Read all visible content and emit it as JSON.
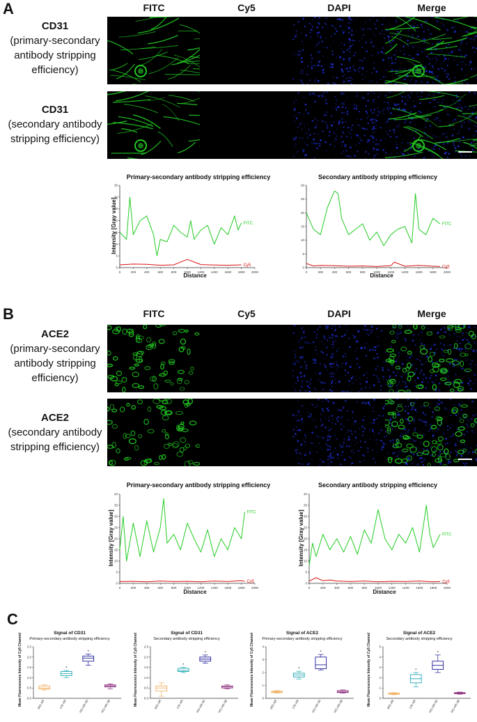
{
  "panels": {
    "A": {
      "letter": "A",
      "col_headers": [
        "FITC",
        "Cy5",
        "DAPI",
        "Merge"
      ],
      "rows": [
        {
          "title": "CD31",
          "sub": [
            "(primary-secondary",
            "antibody stripping",
            "efficiency)"
          ]
        },
        {
          "title": "CD31",
          "sub": [
            "(secondary antibody",
            "stripping efficiency)"
          ]
        }
      ]
    },
    "B": {
      "letter": "B",
      "col_headers": [
        "FITC",
        "Cy5",
        "DAPI",
        "Merge"
      ],
      "rows": [
        {
          "title": "ACE2",
          "sub": [
            "(primary-secondary",
            "antibody stripping",
            "efficiency)"
          ]
        },
        {
          "title": "ACE2",
          "sub": [
            "(secondary antibody",
            "stripping efficiency)"
          ]
        }
      ]
    },
    "C": {
      "letter": "C"
    }
  },
  "colors": {
    "fitc": "#22cc22",
    "cy5": "#dd1111",
    "dapi": "#2233ee",
    "tile_bg": "#000000",
    "mo": "#f0b060",
    "cr": "#20a8b0",
    "ho50": "#1c1c9a",
    "ho98": "#8a2a7a"
  },
  "chart_data": [
    {
      "type": "line",
      "title": "Primary-secondary antibody stripping efficiency",
      "xlabel": "Distance",
      "ylabel": "Intensity [Gray value]",
      "xlim": [
        0,
        2000
      ],
      "ylim": [
        0,
        35
      ],
      "xticks": [
        "0",
        "200",
        "400",
        "600",
        "800",
        "1000",
        "1200",
        "1400",
        "1600",
        "1800",
        "2000"
      ],
      "yticks": [
        "0",
        "5",
        "10",
        "15",
        "20",
        "25",
        "30",
        "35"
      ],
      "series": [
        {
          "name": "FITC",
          "color": "#22cc22",
          "x": [
            0,
            100,
            150,
            200,
            300,
            400,
            500,
            550,
            600,
            700,
            800,
            900,
            1000,
            1050,
            1100,
            1200,
            1300,
            1400,
            1500,
            1600,
            1700,
            1750,
            1800
          ],
          "y": [
            15,
            12,
            30,
            14,
            20,
            22,
            14,
            5,
            12,
            11,
            18,
            15,
            13,
            20,
            12,
            16,
            18,
            10,
            17,
            14,
            22,
            16,
            19
          ]
        },
        {
          "name": "Cy5",
          "color": "#dd1111",
          "x": [
            0,
            200,
            400,
            600,
            800,
            1000,
            1200,
            1400,
            1600,
            1800
          ],
          "y": [
            1.2,
            1.5,
            1.4,
            1.0,
            1.2,
            3.5,
            1.3,
            1.1,
            1.0,
            1.2
          ]
        }
      ]
    },
    {
      "type": "line",
      "title": "Secondary antibody stripping efficiency",
      "xlabel": "Distance",
      "ylabel": "",
      "xlim": [
        0,
        2000
      ],
      "ylim": [
        0,
        30
      ],
      "xticks": [
        "0",
        "200",
        "400",
        "600",
        "800",
        "1000",
        "1200",
        "1400",
        "1600",
        "1800",
        "2000"
      ],
      "yticks": [
        "0",
        "5",
        "10",
        "15",
        "20",
        "25",
        "30"
      ],
      "series": [
        {
          "name": "FITC",
          "color": "#22cc22",
          "x": [
            0,
            100,
            200,
            300,
            350,
            400,
            450,
            500,
            600,
            700,
            800,
            900,
            1000,
            1100,
            1200,
            1300,
            1400,
            1500,
            1550,
            1600,
            1700,
            1800,
            1900
          ],
          "y": [
            20,
            14,
            12,
            22,
            25,
            28,
            27,
            18,
            12,
            14,
            16,
            10,
            13,
            8,
            12,
            14,
            15,
            9,
            27,
            14,
            12,
            18,
            16
          ]
        },
        {
          "name": "Cy5",
          "color": "#dd1111",
          "x": [
            0,
            100,
            200,
            400,
            600,
            800,
            1000,
            1200,
            1250,
            1400,
            1600,
            1800,
            1900
          ],
          "y": [
            1.5,
            0.6,
            0.8,
            0.7,
            0.5,
            0.6,
            0.4,
            0.7,
            2.0,
            0.5,
            0.8,
            0.5,
            0.4
          ]
        }
      ]
    },
    {
      "type": "line",
      "title": "Primary-secondary antibody stripping efficiency",
      "xlabel": "Distance",
      "ylabel": "Intensity [Gray value]",
      "xlim": [
        0,
        2000
      ],
      "ylim": [
        0,
        40
      ],
      "xticks": [
        "0",
        "200",
        "400",
        "600",
        "800",
        "1000",
        "1200",
        "1400",
        "1600",
        "1800",
        "2000"
      ],
      "yticks": [
        "0",
        "5",
        "10",
        "15",
        "20",
        "25",
        "30",
        "35",
        "40"
      ],
      "series": [
        {
          "name": "FITC",
          "color": "#22cc22",
          "x": [
            0,
            50,
            100,
            200,
            300,
            400,
            500,
            600,
            650,
            700,
            800,
            900,
            1000,
            1100,
            1200,
            1300,
            1400,
            1500,
            1600,
            1700,
            1800,
            1850
          ],
          "y": [
            15,
            30,
            10,
            27,
            12,
            28,
            14,
            25,
            38,
            18,
            22,
            15,
            27,
            20,
            14,
            24,
            12,
            20,
            15,
            25,
            20,
            32
          ]
        },
        {
          "name": "Cy5",
          "color": "#dd1111",
          "x": [
            0,
            200,
            400,
            600,
            800,
            1000,
            1200,
            1400,
            1600,
            1800,
            1850
          ],
          "y": [
            0.8,
            0.9,
            0.7,
            1.0,
            0.8,
            0.9,
            0.7,
            1.0,
            0.8,
            1.2,
            0.9
          ]
        }
      ]
    },
    {
      "type": "line",
      "title": "Secondary antibody stripping efficiency",
      "xlabel": "Distance",
      "ylabel": "Intensity [Gray value]",
      "xlim": [
        0,
        2000
      ],
      "ylim": [
        0,
        40
      ],
      "xticks": [
        "0",
        "200",
        "400",
        "600",
        "800",
        "1000",
        "1200",
        "1400",
        "1600",
        "1800",
        "2000"
      ],
      "yticks": [
        "0",
        "5",
        "10",
        "15",
        "20",
        "25",
        "30",
        "35",
        "40"
      ],
      "series": [
        {
          "name": "FITC",
          "color": "#22cc22",
          "x": [
            0,
            50,
            100,
            200,
            300,
            400,
            500,
            600,
            700,
            800,
            900,
            1000,
            1100,
            1200,
            1300,
            1400,
            1500,
            1600,
            1700,
            1750,
            1800,
            1900
          ],
          "y": [
            8,
            18,
            12,
            22,
            15,
            20,
            14,
            21,
            13,
            24,
            18,
            33,
            20,
            15,
            22,
            18,
            25,
            14,
            35,
            22,
            16,
            22
          ]
        },
        {
          "name": "Cy5",
          "color": "#dd1111",
          "x": [
            0,
            100,
            200,
            300,
            400,
            600,
            800,
            1000,
            1200,
            1400,
            1600,
            1800,
            1900
          ],
          "y": [
            1.0,
            2.5,
            1.2,
            1.5,
            1.0,
            0.8,
            1.0,
            0.7,
            0.9,
            0.8,
            1.0,
            0.7,
            0.8
          ]
        }
      ]
    },
    {
      "type": "box",
      "title": "Signal of CD31",
      "subtitle": "Primary-secondary antibody stripping efficiency",
      "ylabel": "Mean Fluorescence Intensity of Cy5 Channel",
      "ylim": [
        0,
        2.5
      ],
      "yticks": [
        "0.0",
        "0.5",
        "1.0",
        "1.5",
        "2.0",
        "2.5"
      ],
      "categories": [
        "MO-AR",
        "CR-AR",
        "HO-AR-50",
        "HO-AR-98"
      ],
      "boxes": [
        {
          "min": 0.4,
          "q1": 0.45,
          "median": 0.5,
          "q3": 0.6,
          "max": 0.65,
          "star": false
        },
        {
          "min": 1.0,
          "q1": 1.1,
          "median": 1.2,
          "q3": 1.3,
          "max": 1.35,
          "star": true
        },
        {
          "min": 1.6,
          "q1": 1.8,
          "median": 1.95,
          "q3": 2.05,
          "max": 2.15,
          "star": true
        },
        {
          "min": 0.45,
          "q1": 0.55,
          "median": 0.6,
          "q3": 0.65,
          "max": 0.7,
          "star": false
        }
      ]
    },
    {
      "type": "box",
      "title": "Signal of CD31",
      "subtitle": "Secondary antibody stripping efficiency",
      "ylabel": "Mean Fluorescence Intensity of Cy5 Channel",
      "ylim": [
        0,
        2.5
      ],
      "yticks": [
        "0.0",
        "0.5",
        "1.0",
        "1.5",
        "2.0",
        "2.5"
      ],
      "categories": [
        "MO-AR",
        "CR-AR",
        "HO-AR-50",
        "HO-AR-98"
      ],
      "boxes": [
        {
          "min": 0.1,
          "q1": 0.35,
          "median": 0.5,
          "q3": 0.6,
          "max": 0.75,
          "star": false
        },
        {
          "min": 1.25,
          "q1": 1.3,
          "median": 1.35,
          "q3": 1.45,
          "max": 1.5,
          "star": true
        },
        {
          "min": 1.7,
          "q1": 1.8,
          "median": 1.9,
          "q3": 2.0,
          "max": 2.1,
          "star": true
        },
        {
          "min": 0.45,
          "q1": 0.5,
          "median": 0.55,
          "q3": 0.6,
          "max": 0.65,
          "star": false
        }
      ]
    },
    {
      "type": "box",
      "title": "Signal of ACE2",
      "subtitle": "Primary-secondary antibody stripping efficiency",
      "ylabel": "Mean Fluorescence Intensity of Cy5 Channel",
      "ylim": [
        0,
        4
      ],
      "yticks": [
        "0",
        "1",
        "2",
        "3",
        "4"
      ],
      "categories": [
        "MO-AR",
        "CR-AR",
        "HO-AR-50",
        "HO-AR-98"
      ],
      "boxes": [
        {
          "min": 0.4,
          "q1": 0.45,
          "median": 0.5,
          "q3": 0.55,
          "max": 0.6,
          "star": false
        },
        {
          "min": 1.5,
          "q1": 1.65,
          "median": 1.8,
          "q3": 1.95,
          "max": 2.1,
          "star": true
        },
        {
          "min": 2.2,
          "q1": 2.3,
          "median": 2.6,
          "q3": 3.2,
          "max": 3.4,
          "star": true
        },
        {
          "min": 0.4,
          "q1": 0.45,
          "median": 0.5,
          "q3": 0.6,
          "max": 0.65,
          "star": false
        }
      ]
    },
    {
      "type": "box",
      "title": "Signal of ACE2",
      "subtitle": "Secondary antibody stripping efficiency",
      "ylabel": "Mean Fluorescence Intensity of Cy5 Channel",
      "ylim": [
        0,
        5
      ],
      "yticks": [
        "0",
        "1",
        "2",
        "3",
        "4",
        "5"
      ],
      "categories": [
        "MO-AR",
        "CR-AR",
        "HO-AR-50",
        "HO-AR-98"
      ],
      "boxes": [
        {
          "min": 0.35,
          "q1": 0.4,
          "median": 0.45,
          "q3": 0.5,
          "max": 0.55,
          "star": false
        },
        {
          "min": 1.1,
          "q1": 1.5,
          "median": 1.9,
          "q3": 2.3,
          "max": 2.5,
          "star": true
        },
        {
          "min": 2.5,
          "q1": 2.8,
          "median": 3.2,
          "q3": 3.6,
          "max": 4.2,
          "star": true
        },
        {
          "min": 0.4,
          "q1": 0.45,
          "median": 0.5,
          "q3": 0.55,
          "max": 0.6,
          "star": false
        }
      ]
    }
  ]
}
